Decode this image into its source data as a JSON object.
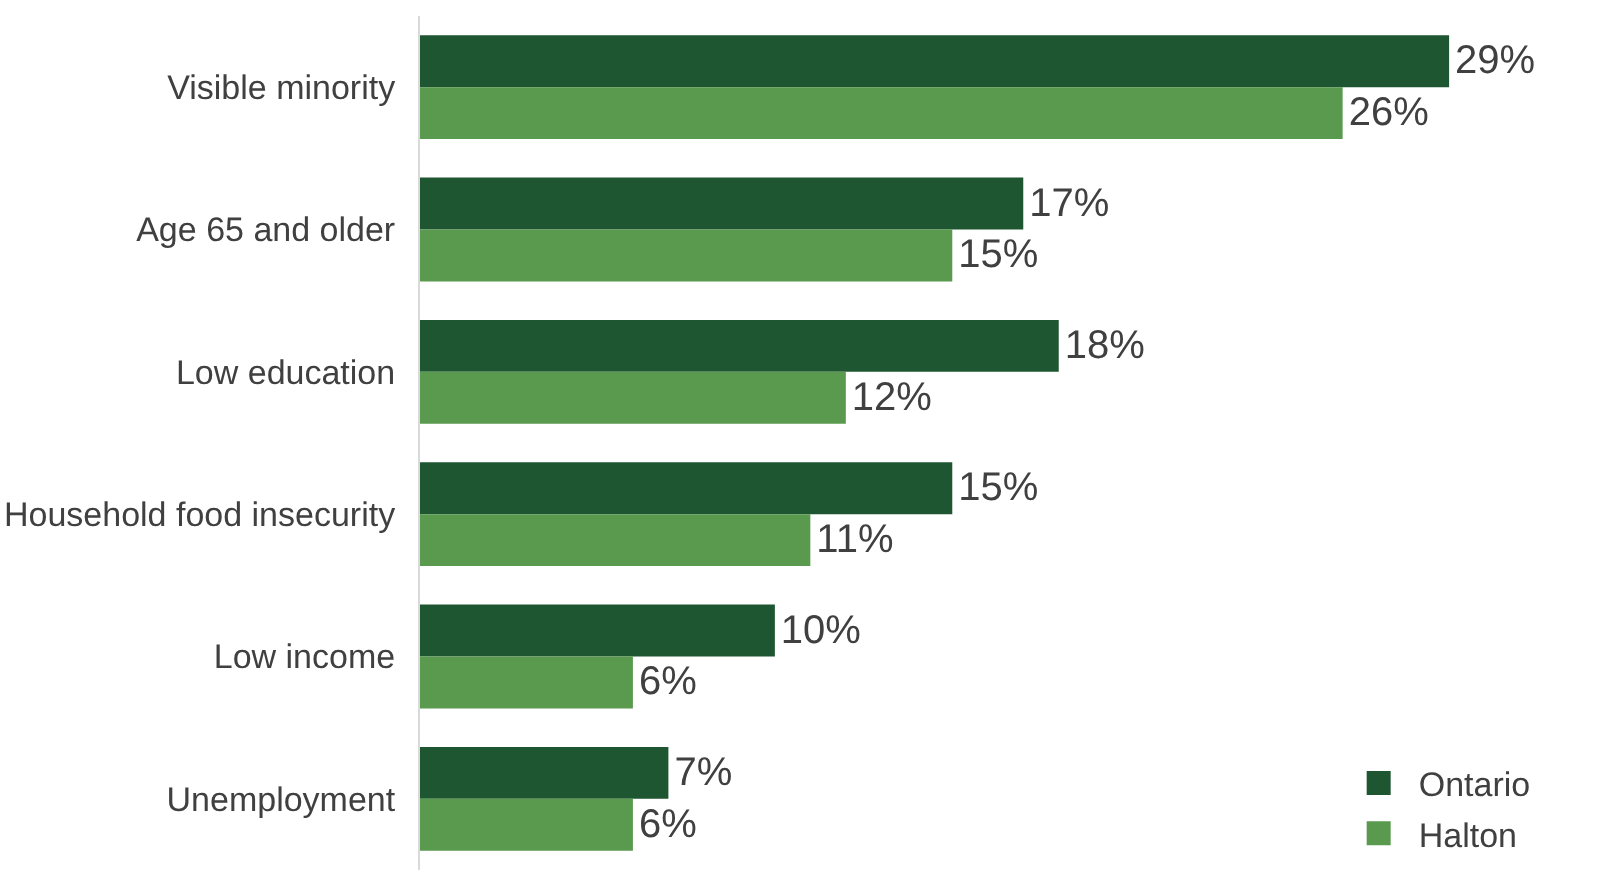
{
  "chart_data": {
    "type": "bar",
    "orientation": "horizontal",
    "categories": [
      "Visible minority",
      "Age 65 and older",
      "Low education",
      "Household food insecurity",
      "Low income",
      "Unemployment"
    ],
    "series": [
      {
        "name": "Ontario",
        "color": "#1e5631",
        "values": [
          29,
          17,
          18,
          15,
          10,
          7
        ],
        "value_labels": [
          "29%",
          "17%",
          "18%",
          "15%",
          "10%",
          "7%"
        ]
      },
      {
        "name": "Halton",
        "color": "#5a9a4f",
        "values": [
          26,
          15,
          12,
          11,
          6,
          6
        ],
        "value_labels": [
          "26%",
          "15%",
          "12%",
          "11%",
          "6%",
          "6%"
        ]
      }
    ],
    "legend": "bottom right",
    "grid": false
  }
}
